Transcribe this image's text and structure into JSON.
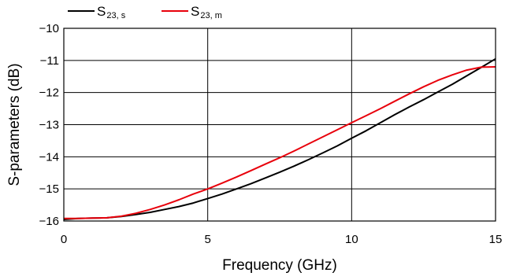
{
  "chart_data": {
    "type": "line",
    "xlabel": "Frequency (GHz)",
    "ylabel": "S-parameters (dB)",
    "xlim": [
      0,
      15
    ],
    "ylim": [
      -16,
      -10
    ],
    "xticks": [
      0,
      5,
      10,
      15
    ],
    "yticks": [
      -10,
      -11,
      -12,
      -13,
      -14,
      -15,
      -16
    ],
    "grid": true,
    "legend_position": "top-left",
    "series": [
      {
        "name_main": "S",
        "name_sub": "23, s",
        "color": "#000000",
        "x": [
          0,
          0.5,
          1,
          1.5,
          2,
          2.5,
          3,
          3.5,
          4,
          4.5,
          5,
          5.5,
          6,
          6.5,
          7,
          7.5,
          8,
          8.5,
          9,
          9.5,
          10,
          10.5,
          11,
          11.5,
          12,
          12.5,
          13,
          13.5,
          14,
          14.5,
          15
        ],
        "values": [
          -15.95,
          -15.92,
          -15.91,
          -15.9,
          -15.86,
          -15.8,
          -15.73,
          -15.64,
          -15.55,
          -15.44,
          -15.3,
          -15.16,
          -15.0,
          -14.84,
          -14.66,
          -14.48,
          -14.29,
          -14.09,
          -13.88,
          -13.66,
          -13.42,
          -13.19,
          -12.94,
          -12.69,
          -12.45,
          -12.22,
          -11.98,
          -11.74,
          -11.48,
          -11.22,
          -10.95
        ]
      },
      {
        "name_main": "S",
        "name_sub": "23, m",
        "color": "#e8000b",
        "x": [
          0,
          0.5,
          1,
          1.5,
          2,
          2.5,
          3,
          3.5,
          4,
          4.5,
          5,
          5.5,
          6,
          6.5,
          7,
          7.5,
          8,
          8.5,
          9,
          9.5,
          10,
          10.5,
          11,
          11.5,
          12,
          12.5,
          13,
          13.5,
          14,
          14.5,
          15
        ],
        "values": [
          -15.92,
          -15.92,
          -15.91,
          -15.9,
          -15.85,
          -15.76,
          -15.64,
          -15.5,
          -15.34,
          -15.16,
          -15.0,
          -14.82,
          -14.63,
          -14.43,
          -14.23,
          -14.03,
          -13.82,
          -13.6,
          -13.38,
          -13.16,
          -12.94,
          -12.72,
          -12.5,
          -12.27,
          -12.04,
          -11.82,
          -11.62,
          -11.45,
          -11.3,
          -11.21,
          -11.2
        ]
      }
    ]
  }
}
